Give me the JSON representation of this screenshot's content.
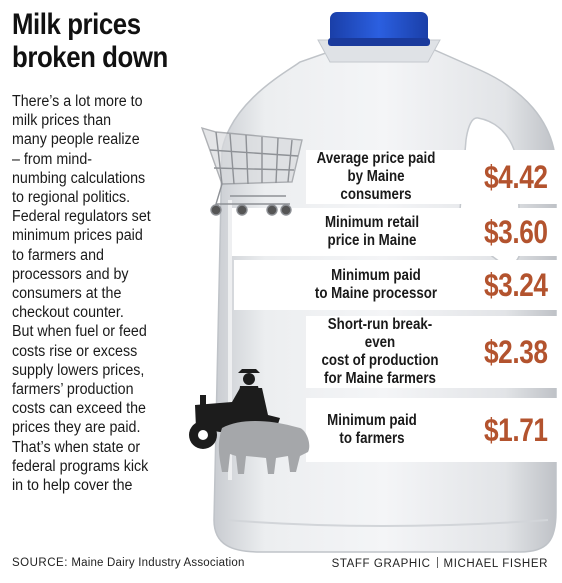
{
  "title_lines": [
    "Milk prices",
    "broken down"
  ],
  "intro_lines": [
    "There’s a lot more to",
    "milk prices than",
    "many people realize",
    "– from mind-",
    "numbing calculations",
    "to regional politics.",
    "Federal regulators set",
    "minimum prices paid",
    "to farmers and",
    "processors and by",
    "consumers at the",
    "checkout counter.",
    "But when fuel or feed",
    "costs rise or excess",
    "supply lowers prices,",
    "farmers’ production",
    "costs can exceed the",
    "prices they are paid.",
    "That’s when state or",
    "federal programs kick",
    "in to help cover the"
  ],
  "prices": [
    {
      "label_lines": [
        "Average price paid",
        "by Maine consumers"
      ],
      "value": "$4.42"
    },
    {
      "label_lines": [
        "Minimum retail",
        "price in Maine"
      ],
      "value": "$3.60"
    },
    {
      "label_lines": [
        "Minimum paid",
        "to Maine processor"
      ],
      "value": "$3.24"
    },
    {
      "label_lines": [
        "Short-run break-even",
        "cost of production",
        "for Maine farmers"
      ],
      "value": "$2.38"
    },
    {
      "label_lines": [
        "Minimum paid",
        "to farmers"
      ],
      "value": "$1.71"
    }
  ],
  "footer": {
    "source_label": "SOURCE:",
    "source_text": "Maine Dairy Industry Association",
    "credit_left": "STAFF GRAPHIC",
    "credit_right": "MICHAEL FISHER"
  },
  "colors": {
    "price": "#b3532e",
    "cap": "#1f4fc8",
    "jug": "#e3e5e8"
  },
  "icons": [
    "shopping-cart-icon",
    "tractor-icon",
    "cow-icon",
    "milk-jug-icon"
  ]
}
